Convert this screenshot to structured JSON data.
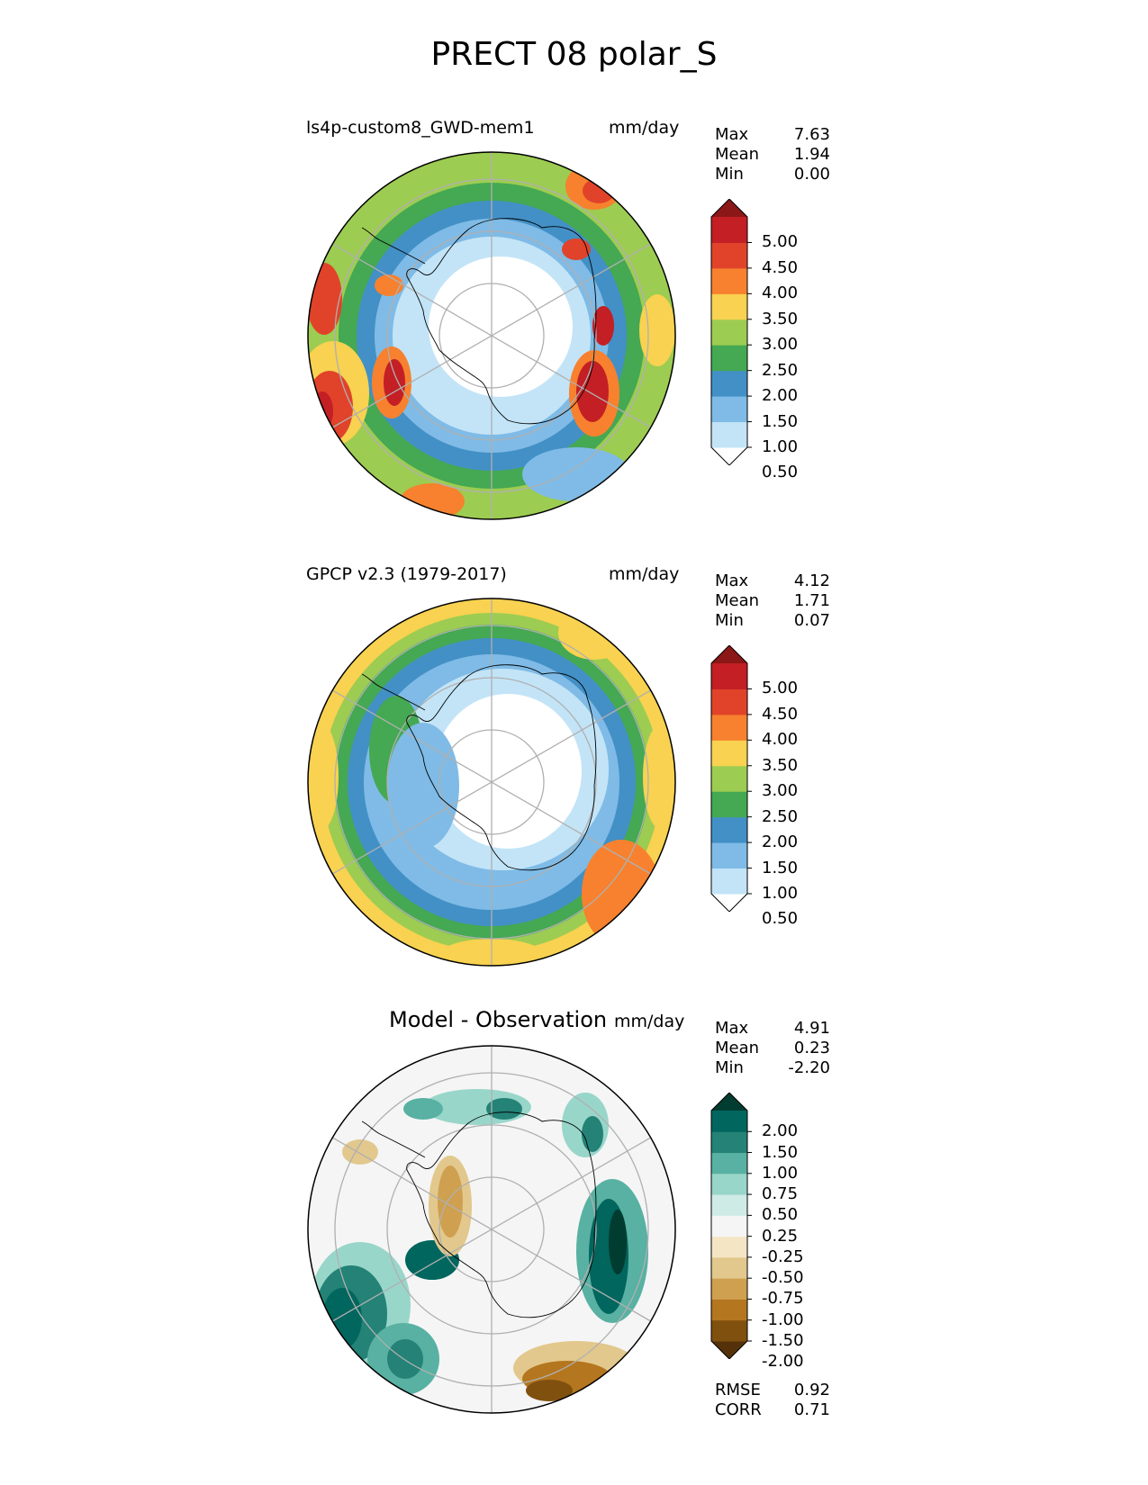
{
  "figure": {
    "title": "PRECT 08 polar_S"
  },
  "panels": [
    {
      "id": "model",
      "label": "ls4p-custom8_GWD-mem1",
      "units": "mm/day",
      "stats": [
        {
          "k": "Max",
          "v": "7.63"
        },
        {
          "k": "Mean",
          "v": "1.94"
        },
        {
          "k": "Min",
          "v": "0.00"
        }
      ],
      "colorbar": {
        "labels": [
          "5.00",
          "4.50",
          "4.00",
          "3.50",
          "3.00",
          "2.50",
          "2.00",
          "1.50",
          "1.00",
          "0.50"
        ],
        "colors": [
          "#ffffff",
          "#c3e4f7",
          "#7fbbe6",
          "#4290c6",
          "#45a853",
          "#9dcc52",
          "#f8d250",
          "#f7812e",
          "#e0432a",
          "#c31f24",
          "#8c1717"
        ]
      }
    },
    {
      "id": "obs",
      "label": "GPCP v2.3 (1979-2017)",
      "units": "mm/day",
      "stats": [
        {
          "k": "Max",
          "v": "4.12"
        },
        {
          "k": "Mean",
          "v": "1.71"
        },
        {
          "k": "Min",
          "v": "0.07"
        }
      ],
      "colorbar": {
        "labels": [
          "5.00",
          "4.50",
          "4.00",
          "3.50",
          "3.00",
          "2.50",
          "2.00",
          "1.50",
          "1.00",
          "0.50"
        ],
        "colors": [
          "#ffffff",
          "#c3e4f7",
          "#7fbbe6",
          "#4290c6",
          "#45a853",
          "#9dcc52",
          "#f8d250",
          "#f7812e",
          "#e0432a",
          "#c31f24",
          "#8c1717"
        ]
      }
    },
    {
      "id": "diff",
      "label": "Model - Observation",
      "units": "mm/day",
      "stats": [
        {
          "k": "Max",
          "v": "4.91"
        },
        {
          "k": "Mean",
          "v": "0.23"
        },
        {
          "k": "Min",
          "v": "-2.20"
        }
      ],
      "colorbar": {
        "labels": [
          "2.00",
          "1.50",
          "1.00",
          "0.75",
          "0.50",
          "0.25",
          "-0.25",
          "-0.50",
          "-0.75",
          "-1.00",
          "-1.50",
          "-2.00"
        ],
        "colors": [
          "#553109",
          "#80500f",
          "#b4761e",
          "#cfa050",
          "#e2c88c",
          "#f4e5c4",
          "#f5f5f5",
          "#cfebe6",
          "#99d6ca",
          "#58b1a2",
          "#248276",
          "#01665e",
          "#013c30"
        ]
      },
      "metrics": [
        {
          "k": "RMSE",
          "v": "0.92"
        },
        {
          "k": "CORR",
          "v": "0.71"
        }
      ]
    }
  ]
}
